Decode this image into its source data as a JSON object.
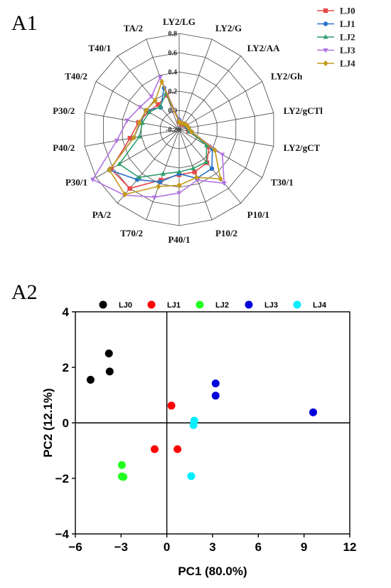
{
  "panels": {
    "a1_label": "A1",
    "a2_label": "A2"
  },
  "chart_data": [
    {
      "type": "radar",
      "panel": "A1",
      "axes": [
        "LY2/LG",
        "LY2/G",
        "LY2/AA",
        "LY2/Gh",
        "LY2/gCTl",
        "LY2/gCT",
        "T30/1",
        "P10/1",
        "P10/2",
        "P40/1",
        "T70/2",
        "PA/2",
        "P30/1",
        "P40/2",
        "P30/2",
        "T40/2",
        "T40/1",
        "TA/2"
      ],
      "rlim": [
        -0.2,
        0.8
      ],
      "rticks": [
        0.8,
        0.6,
        0.4,
        0.2,
        0.0,
        -0.2
      ],
      "rtick_labels": [
        "0.8",
        "0.6",
        "0.4",
        "0.2",
        "0.0",
        "-0.2"
      ],
      "grid": true,
      "legend_position": "top-right",
      "series": [
        {
          "name": "LJ0",
          "color": "#e8484a",
          "marker": "square",
          "values": [
            -0.12,
            -0.14,
            -0.13,
            -0.12,
            -0.11,
            -0.1,
            0.16,
            0.25,
            0.27,
            0.27,
            0.36,
            0.6,
            0.62,
            0.32,
            0.23,
            0.17,
            0.14,
            0.18
          ]
        },
        {
          "name": "LJ1",
          "color": "#2a73c9",
          "marker": "circle",
          "values": [
            -0.1,
            -0.13,
            -0.12,
            -0.12,
            -0.11,
            -0.09,
            0.2,
            0.33,
            0.34,
            0.26,
            0.38,
            0.48,
            0.64,
            0.28,
            0.21,
            0.2,
            0.1,
            0.26
          ]
        },
        {
          "name": "LJ2",
          "color": "#2e9e6e",
          "marker": "triangle-up",
          "values": [
            -0.11,
            -0.13,
            -0.12,
            -0.11,
            -0.1,
            -0.09,
            0.13,
            0.24,
            0.23,
            0.24,
            0.29,
            0.45,
            0.52,
            0.22,
            0.19,
            0.16,
            0.11,
            0.2
          ]
        },
        {
          "name": "LJ3",
          "color": "#b173e0",
          "marker": "triangle-down",
          "values": [
            -0.11,
            -0.13,
            -0.12,
            -0.11,
            -0.1,
            -0.07,
            0.32,
            0.53,
            0.36,
            0.46,
            0.55,
            0.69,
            0.84,
            0.46,
            0.35,
            0.27,
            0.25,
            0.38
          ]
        },
        {
          "name": "LJ4",
          "color": "#c49a1a",
          "marker": "diamond",
          "values": [
            -0.12,
            -0.13,
            -0.12,
            -0.11,
            -0.1,
            -0.07,
            0.23,
            0.47,
            0.33,
            0.38,
            0.43,
            0.68,
            0.64,
            0.28,
            0.22,
            0.2,
            0.19,
            0.33
          ]
        }
      ]
    },
    {
      "type": "scatter",
      "panel": "A2",
      "xlabel": "PC1 (80.0%)",
      "ylabel": "PC2 (12.1%)",
      "xlim": [
        -6,
        12
      ],
      "ylim": [
        -4,
        4
      ],
      "xticks": [
        -6,
        -3,
        0,
        3,
        6,
        9,
        12
      ],
      "yticks": [
        -4,
        -2,
        0,
        2,
        4
      ],
      "xtick_labels": [
        "−6",
        "−3",
        "0",
        "3",
        "6",
        "9",
        "12"
      ],
      "ytick_labels": [
        "−4",
        "−2",
        "0",
        "2",
        "4"
      ],
      "zero_lines": true,
      "legend_position": "top",
      "series": [
        {
          "name": "LJ0",
          "color": "#000000",
          "points": [
            [
              -5.0,
              1.55
            ],
            [
              -3.8,
              2.5
            ],
            [
              -3.75,
              1.85
            ]
          ]
        },
        {
          "name": "LJ1",
          "color": "#ff0000",
          "points": [
            [
              0.3,
              0.62
            ],
            [
              -0.8,
              -0.95
            ],
            [
              0.7,
              -0.95
            ]
          ]
        },
        {
          "name": "LJ2",
          "color": "#22ff22",
          "points": [
            [
              -2.95,
              -1.52
            ],
            [
              -2.95,
              -1.93
            ],
            [
              -2.85,
              -1.95
            ]
          ]
        },
        {
          "name": "LJ3",
          "color": "#0000dd",
          "points": [
            [
              3.2,
              1.42
            ],
            [
              3.2,
              0.98
            ],
            [
              9.6,
              0.38
            ]
          ]
        },
        {
          "name": "LJ4",
          "color": "#00f0ff",
          "points": [
            [
              1.8,
              0.08
            ],
            [
              1.75,
              -0.08
            ],
            [
              1.6,
              -1.92
            ]
          ]
        }
      ]
    }
  ]
}
